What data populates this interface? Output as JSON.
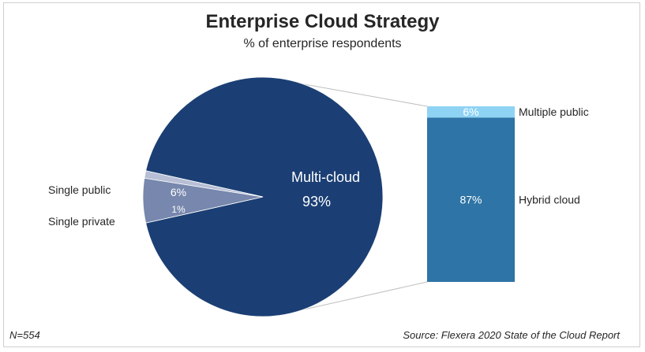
{
  "title": "Enterprise Cloud Strategy",
  "subtitle": "% of enterprise respondents",
  "footer": {
    "note": "N=554",
    "source": "Source: Flexera 2020 State of the Cloud Report"
  },
  "chart_data": {
    "type": "pie",
    "title": "Enterprise Cloud Strategy",
    "subtitle": "% of enterprise respondents",
    "pie": {
      "slices": [
        {
          "name": "Multi-cloud",
          "value": 93,
          "label": "93%",
          "color": "#1b3f74",
          "text_color": "#ffffff"
        },
        {
          "name": "Single public",
          "value": 6,
          "label": "6%",
          "color": "#7787ad",
          "text_color": "#ffffff"
        },
        {
          "name": "Single private",
          "value": 1,
          "label": "1%",
          "color": "#b7bfd6",
          "text_color": "#ffffff"
        }
      ]
    },
    "breakdown_bar": {
      "of": "Multi-cloud",
      "segments": [
        {
          "name": "Multiple public",
          "value": 6,
          "label": "6%",
          "color": "#8fd3f4"
        },
        {
          "name": "Hybrid cloud",
          "value": 87,
          "label": "87%",
          "color": "#2e74a6"
        }
      ]
    },
    "connector_color": "#bfbfbf"
  }
}
